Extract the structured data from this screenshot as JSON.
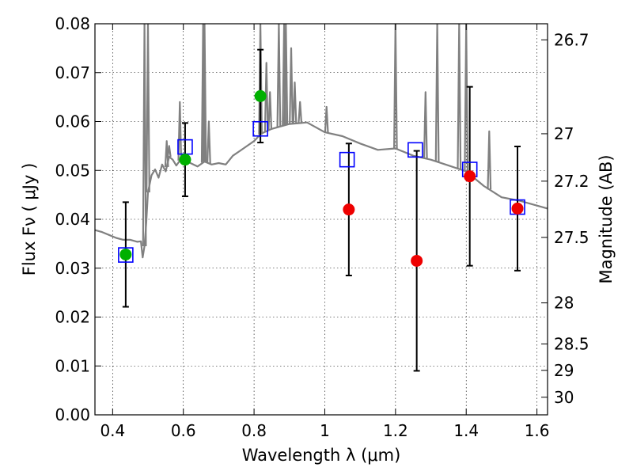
{
  "chart_data": {
    "type": "scatter",
    "xlabel": "Wavelength  λ (μm)",
    "ylabel_left": "Flux  Fν  ( μJy )",
    "ylabel_right": "Magnitude (AB)",
    "xlim": [
      0.35,
      1.63
    ],
    "ylim": [
      0.0,
      0.08
    ],
    "grid": true,
    "x_ticks": [
      0.4,
      0.6,
      0.8,
      1.0,
      1.2,
      1.4,
      1.6
    ],
    "x_tick_labels": [
      "0.4",
      "0.6",
      "0.8",
      "1",
      "1.2",
      "1.4",
      "1.6"
    ],
    "y_ticks": [
      0.0,
      0.01,
      0.02,
      0.03,
      0.04,
      0.05,
      0.06,
      0.07,
      0.08
    ],
    "y_tick_labels": [
      "0.00",
      "0.01",
      "0.02",
      "0.03",
      "0.04",
      "0.05",
      "0.06",
      "0.07",
      "0.08"
    ],
    "right_ticks": [
      {
        "label": "26.7",
        "flux": 0.0767
      },
      {
        "label": "27",
        "flux": 0.0575
      },
      {
        "label": "27.2",
        "flux": 0.0478
      },
      {
        "label": "27.5",
        "flux": 0.0363
      },
      {
        "label": "28",
        "flux": 0.0229
      },
      {
        "label": "28.5",
        "flux": 0.0145
      },
      {
        "label": "29",
        "flux": 0.0091
      },
      {
        "label": "30",
        "flux": 0.0036
      }
    ],
    "series": [
      {
        "name": "model spectrum",
        "kind": "line",
        "color": "#808080",
        "x": [
          0.35,
          0.37,
          0.39,
          0.41,
          0.43,
          0.45,
          0.47,
          0.48,
          0.485,
          0.49,
          0.495,
          0.5,
          0.51,
          0.52,
          0.53,
          0.54,
          0.55,
          0.56,
          0.57,
          0.58,
          0.59,
          0.6,
          0.62,
          0.64,
          0.66,
          0.68,
          0.7,
          0.72,
          0.74,
          0.76,
          0.78,
          0.8,
          0.82,
          0.85,
          0.9,
          0.95,
          1.0,
          1.05,
          1.1,
          1.15,
          1.2,
          1.25,
          1.3,
          1.35,
          1.4,
          1.45,
          1.5,
          1.55,
          1.6,
          1.63
        ],
        "y": [
          0.0378,
          0.0374,
          0.0368,
          0.0362,
          0.0358,
          0.0358,
          0.0354,
          0.0355,
          0.0322,
          0.0345,
          0.0392,
          0.0455,
          0.049,
          0.0502,
          0.0485,
          0.0512,
          0.0498,
          0.0528,
          0.0522,
          0.051,
          0.052,
          0.0525,
          0.0515,
          0.0508,
          0.0518,
          0.0512,
          0.0515,
          0.0512,
          0.053,
          0.054,
          0.055,
          0.056,
          0.0575,
          0.0585,
          0.0595,
          0.0598,
          0.0578,
          0.057,
          0.0555,
          0.0542,
          0.0545,
          0.053,
          0.0522,
          0.051,
          0.0498,
          0.0468,
          0.0445,
          0.0438,
          0.0428,
          0.0422
        ]
      },
      {
        "name": "emission spikes",
        "kind": "spikes",
        "color": "#808080",
        "x": [
          0.49,
          0.5,
          0.553,
          0.56,
          0.59,
          0.656,
          0.66,
          0.672,
          0.818,
          0.835,
          0.845,
          0.87,
          0.885,
          0.89,
          0.905,
          0.915,
          0.93,
          1.005,
          1.2,
          1.285,
          1.318,
          1.38,
          1.4,
          1.465
        ],
        "y": [
          0.08,
          0.08,
          0.056,
          0.055,
          0.064,
          0.08,
          0.08,
          0.06,
          0.08,
          0.072,
          0.066,
          0.08,
          0.08,
          0.08,
          0.075,
          0.068,
          0.064,
          0.063,
          0.08,
          0.066,
          0.08,
          0.08,
          0.08,
          0.058
        ]
      },
      {
        "name": "model photometry",
        "kind": "open-square",
        "color": "#0000ff",
        "x": [
          0.437,
          0.605,
          0.818,
          1.063,
          1.256,
          1.41,
          1.545
        ],
        "y": [
          0.0327,
          0.0548,
          0.0585,
          0.0522,
          0.0542,
          0.0502,
          0.0425
        ]
      },
      {
        "name": "detections",
        "kind": "filled-circle",
        "color": "#00b000",
        "x": [
          0.437,
          0.605,
          0.818
        ],
        "y": [
          0.0328,
          0.0522,
          0.0652
        ],
        "err": [
          0.0107,
          0.0075,
          0.0095
        ]
      },
      {
        "name": "upper limits",
        "kind": "filled-circle",
        "color": "#ee0000",
        "x": [
          1.068,
          1.26,
          1.41,
          1.545
        ],
        "y": [
          0.042,
          0.0315,
          0.0488,
          0.0422
        ],
        "err": [
          0.0135,
          0.0225,
          0.0183,
          0.0127
        ]
      }
    ]
  }
}
